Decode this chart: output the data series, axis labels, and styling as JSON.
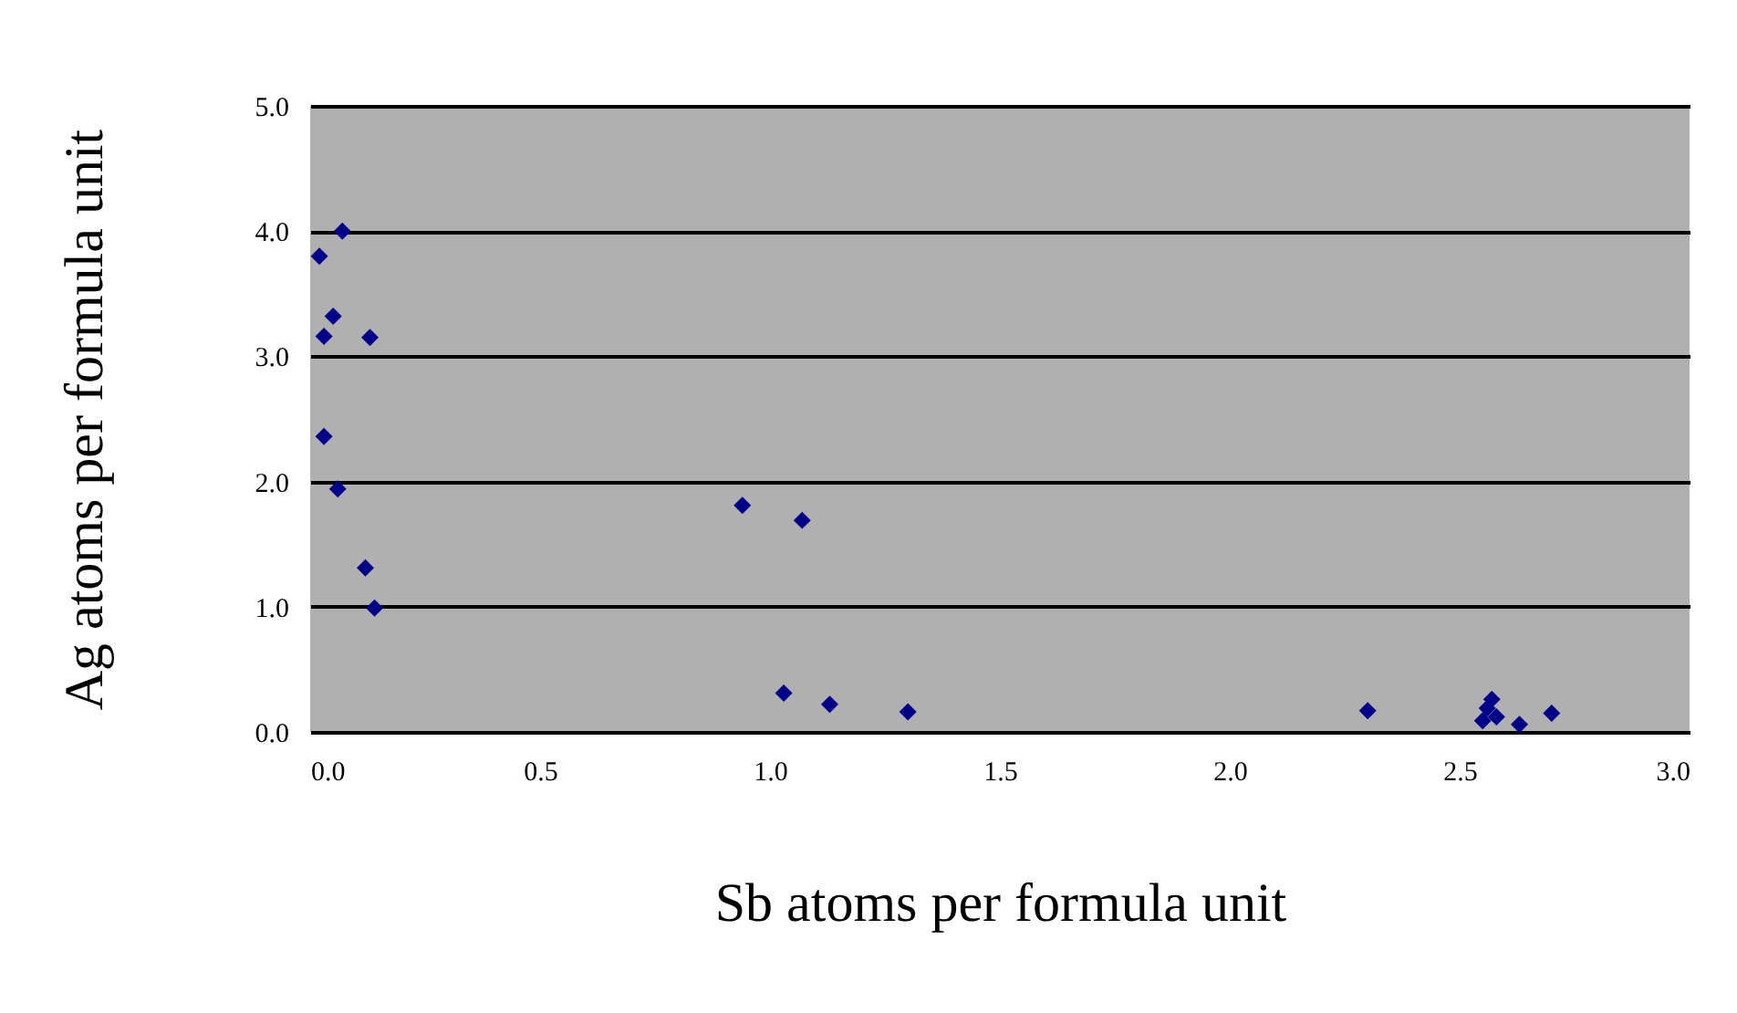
{
  "chart_data": {
    "type": "scatter",
    "xlabel": "Sb atoms per formula unit",
    "ylabel": "Ag atoms per formula unit",
    "x": [
      0.02,
      0.07,
      0.05,
      0.03,
      0.13,
      0.03,
      0.06,
      0.12,
      0.14,
      0.94,
      1.07,
      1.03,
      1.13,
      1.3,
      2.3,
      2.56,
      2.55,
      2.58,
      2.63,
      2.7,
      2.57
    ],
    "series": [
      {
        "color": "#000088",
        "values": [
          3.8,
          4.0,
          3.32,
          3.16,
          3.15,
          2.36,
          1.94,
          1.31,
          0.99,
          1.81,
          1.69,
          0.31,
          0.22,
          0.16,
          0.17,
          0.19,
          0.09,
          0.12,
          0.06,
          0.15,
          0.26
        ]
      }
    ],
    "xlim": [
      0,
      3
    ],
    "ylim": [
      0,
      5
    ],
    "xticks": [
      {
        "value": 0,
        "label": "0.0"
      },
      {
        "value": 0.5,
        "label": "0.5"
      },
      {
        "value": 1,
        "label": "1.0"
      },
      {
        "value": 1.5,
        "label": "1.5"
      },
      {
        "value": 2,
        "label": "2.0"
      },
      {
        "value": 2.5,
        "label": "2.5"
      },
      {
        "value": 3,
        "label": "3.0"
      }
    ],
    "yticks": [
      {
        "value": 0,
        "label": "0.0"
      },
      {
        "value": 1,
        "label": "1.0"
      },
      {
        "value": 2,
        "label": "2.0"
      },
      {
        "value": 3,
        "label": "3.0"
      },
      {
        "value": 4,
        "label": "4.0"
      },
      {
        "value": 5,
        "label": "5.0"
      }
    ],
    "grid": "y",
    "marker": "diamond",
    "legend": false
  }
}
